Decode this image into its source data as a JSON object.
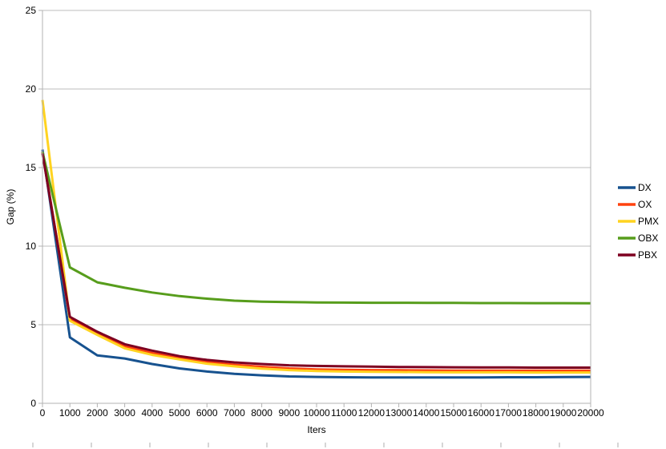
{
  "chart_data": {
    "type": "line",
    "title": "",
    "xlabel": "Iters",
    "ylabel": "Gap (%)",
    "xlim": [
      0,
      20000
    ],
    "ylim": [
      0,
      25
    ],
    "x_tick_labels": [
      "0",
      "1000",
      "2000",
      "3000",
      "4000",
      "5000",
      "6000",
      "7000",
      "8000",
      "9000",
      "10000",
      "11000",
      "12000",
      "13000",
      "14000",
      "15000",
      "16000",
      "17000",
      "18000",
      "19000",
      "20000"
    ],
    "y_tick_labels": [
      "0",
      "5",
      "10",
      "15",
      "20",
      "25"
    ],
    "grid": "horizontal gridlines on",
    "legend_position": "right, vertically centered, no border",
    "x": [
      0,
      1000,
      2000,
      3000,
      4000,
      5000,
      6000,
      7000,
      8000,
      9000,
      10000,
      11000,
      12000,
      13000,
      14000,
      15000,
      16000,
      17000,
      18000,
      19000,
      20000
    ],
    "series": [
      {
        "name": "DX",
        "color": "#17528f",
        "values": [
          16.15,
          4.2,
          3.05,
          2.85,
          2.5,
          2.22,
          2.02,
          1.88,
          1.78,
          1.71,
          1.68,
          1.66,
          1.65,
          1.65,
          1.65,
          1.65,
          1.65,
          1.66,
          1.66,
          1.67,
          1.68
        ]
      },
      {
        "name": "OX",
        "color": "#ff420e",
        "values": [
          16.0,
          5.4,
          4.45,
          3.63,
          3.2,
          2.9,
          2.63,
          2.45,
          2.32,
          2.22,
          2.16,
          2.13,
          2.11,
          2.1,
          2.09,
          2.08,
          2.08,
          2.08,
          2.08,
          2.08,
          2.08
        ]
      },
      {
        "name": "PMX",
        "color": "#ffd320",
        "values": [
          19.3,
          5.25,
          4.35,
          3.5,
          3.08,
          2.79,
          2.52,
          2.35,
          2.21,
          2.11,
          2.05,
          2.02,
          2.0,
          1.99,
          1.98,
          1.97,
          1.97,
          1.97,
          1.96,
          1.96,
          1.96
        ]
      },
      {
        "name": "OBX",
        "color": "#579d1c",
        "values": [
          16.0,
          8.65,
          7.7,
          7.35,
          7.05,
          6.82,
          6.66,
          6.53,
          6.47,
          6.44,
          6.42,
          6.41,
          6.4,
          6.4,
          6.39,
          6.39,
          6.38,
          6.38,
          6.37,
          6.37,
          6.36
        ]
      },
      {
        "name": "PBX",
        "color": "#7e0021",
        "values": [
          15.9,
          5.5,
          4.55,
          3.76,
          3.35,
          3.0,
          2.76,
          2.6,
          2.5,
          2.42,
          2.38,
          2.35,
          2.33,
          2.31,
          2.3,
          2.29,
          2.28,
          2.28,
          2.27,
          2.27,
          2.27
        ]
      }
    ]
  },
  "colors": {
    "background": "#ffffff",
    "gridline": "#bdbdbd",
    "axis": "#b3b3b3",
    "text": "#000000",
    "bottom_cell_mark": "#c9c9c9"
  }
}
